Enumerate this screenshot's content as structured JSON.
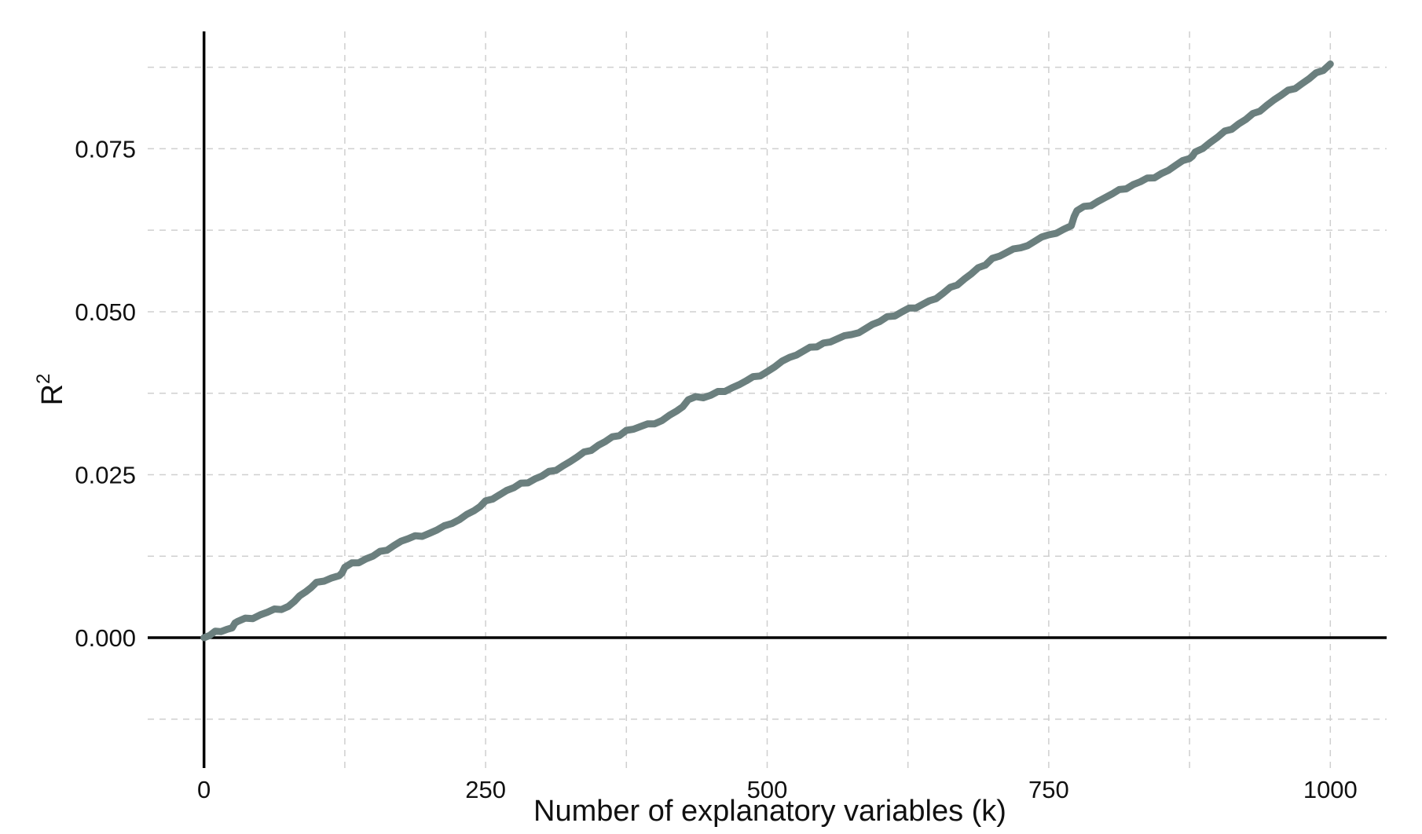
{
  "chart_data": {
    "type": "line",
    "xlabel": "Number of explanatory variables (k)",
    "ylabel_base": "R",
    "ylabel_sup": "2",
    "xlim": [
      -50,
      1050
    ],
    "ylim": [
      -0.02,
      0.093
    ],
    "x_ticks": [
      0,
      250,
      500,
      750,
      1000
    ],
    "x_tick_labels": [
      "0",
      "250",
      "500",
      "750",
      "1000"
    ],
    "x_minor_grid": [
      125,
      375,
      625,
      875
    ],
    "y_ticks": [
      0.0,
      0.025,
      0.05,
      0.075
    ],
    "y_tick_labels": [
      "0.000",
      "0.025",
      "0.050",
      "0.075"
    ],
    "y_minor_grid": [
      -0.0125,
      0.0125,
      0.0375,
      0.0625,
      0.0875
    ],
    "grid": true,
    "legend": "none",
    "series_color": "#6b7f7e",
    "series": [
      {
        "x": [
          0,
          10,
          25,
          30,
          50,
          75,
          90,
          100,
          120,
          125,
          150,
          175,
          200,
          220,
          240,
          250,
          275,
          300,
          325,
          350,
          375,
          400,
          420,
          430,
          450,
          475,
          500,
          520,
          550,
          575,
          600,
          620,
          650,
          675,
          700,
          725,
          750,
          770,
          775,
          800,
          825,
          850,
          875,
          880,
          900,
          925,
          950,
          975,
          1000
        ],
        "y": [
          0.0,
          0.001,
          0.0015,
          0.0025,
          0.0035,
          0.0048,
          0.007,
          0.0085,
          0.0095,
          0.0108,
          0.0125,
          0.0148,
          0.016,
          0.0175,
          0.0195,
          0.021,
          0.023,
          0.0248,
          0.027,
          0.0295,
          0.0318,
          0.0328,
          0.0348,
          0.0365,
          0.0372,
          0.0388,
          0.0408,
          0.043,
          0.0452,
          0.0465,
          0.0485,
          0.05,
          0.052,
          0.055,
          0.0582,
          0.0598,
          0.0618,
          0.0632,
          0.0655,
          0.0675,
          0.0695,
          0.0712,
          0.0735,
          0.0745,
          0.0768,
          0.0795,
          0.0825,
          0.085,
          0.088
        ]
      }
    ]
  }
}
